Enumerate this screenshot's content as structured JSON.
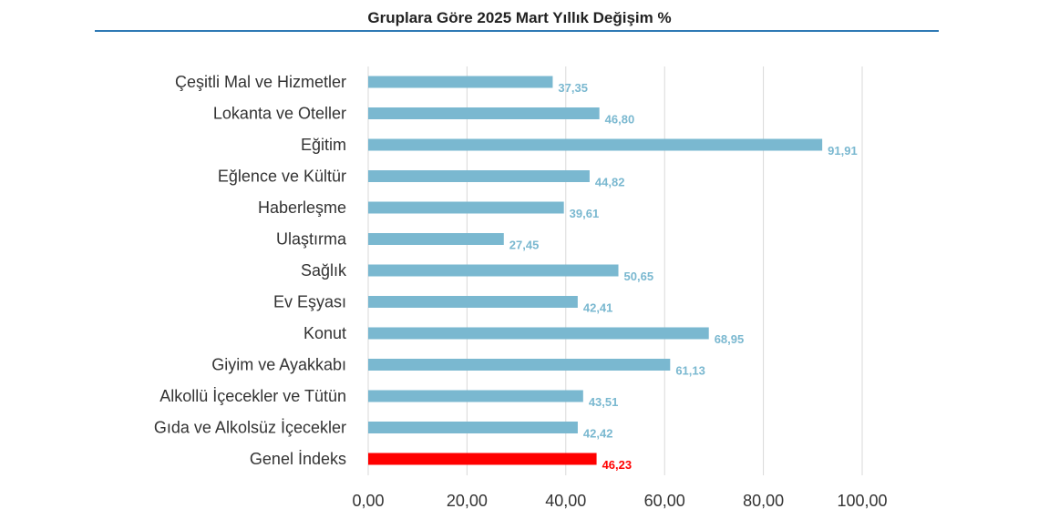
{
  "chart_data": {
    "type": "bar",
    "orientation": "horizontal",
    "title": "Gruplara Göre 2025 Mart Yıllık Değişim %",
    "categories": [
      "Çeşitli Mal ve Hizmetler",
      "Lokanta ve Oteller",
      "Eğitim",
      "Eğlence ve Kültür",
      "Haberleşme",
      "Ulaştırma",
      "Sağlık",
      "Ev Eşyası",
      "Konut",
      "Giyim ve Ayakkabı",
      "Alkollü İçecekler ve Tütün",
      "Gıda ve Alkolsüz İçecekler",
      "Genel İndeks"
    ],
    "values": [
      37.35,
      46.8,
      91.91,
      44.82,
      39.61,
      27.45,
      50.65,
      42.41,
      68.95,
      61.13,
      43.51,
      42.42,
      46.23
    ],
    "value_labels": [
      "37,35",
      "46,80",
      "91,91",
      "44,82",
      "39,61",
      "27,45",
      "50,65",
      "42,41",
      "68,95",
      "61,13",
      "43,51",
      "42,42",
      "46,23"
    ],
    "highlight_index": 12,
    "xlim": [
      0,
      100
    ],
    "x_ticks": [
      0,
      20,
      40,
      60,
      80,
      100
    ],
    "x_tick_labels": [
      "0,00",
      "20,00",
      "40,00",
      "60,00",
      "80,00",
      "100,00"
    ],
    "grid": true,
    "colors": {
      "bar": "#7ab8d0",
      "highlight": "#ff0000",
      "label": "#7ab8d0",
      "highlight_label": "#ff0000",
      "title_rule": "#2f7ab5",
      "grid": "#d9d9d9"
    }
  }
}
